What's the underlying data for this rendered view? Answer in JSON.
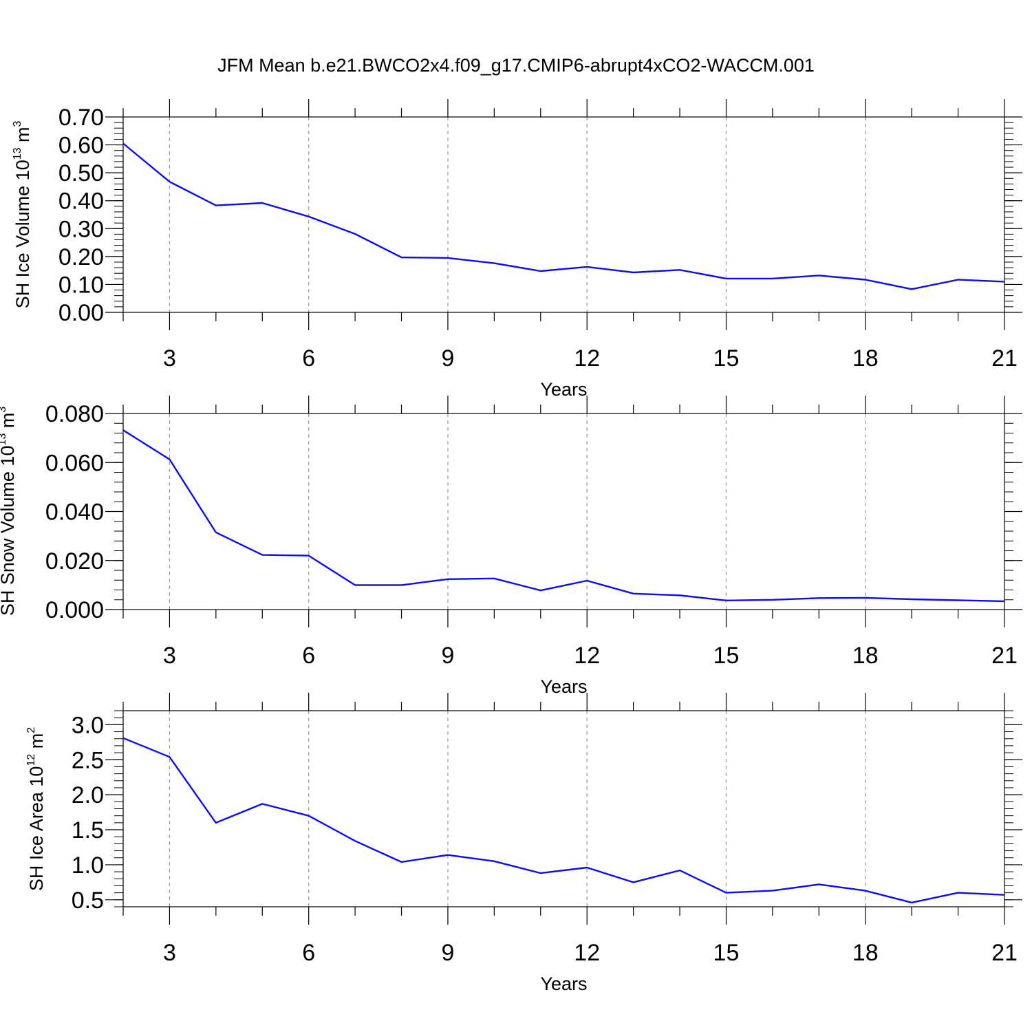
{
  "title": "JFM Mean b.e21.BWCO2x4.f09_g17.CMIP6-abrupt4xCO2-WACCM.001",
  "colors": {
    "line": "#0a0aff",
    "axis": "#000000",
    "grid": "#999999"
  },
  "chart_data": [
    {
      "type": "line",
      "x": [
        2,
        3,
        4,
        5,
        6,
        7,
        8,
        9,
        10,
        11,
        12,
        13,
        14,
        15,
        16,
        17,
        18,
        19,
        20,
        21
      ],
      "series": [
        {
          "values": [
            0.605,
            0.468,
            0.383,
            0.392,
            0.343,
            0.281,
            0.197,
            0.195,
            0.176,
            0.148,
            0.163,
            0.143,
            0.152,
            0.121,
            0.121,
            0.132,
            0.117,
            0.083,
            0.117,
            0.11
          ]
        }
      ],
      "xlim": [
        2,
        21
      ],
      "ylim": [
        0.0,
        0.7
      ],
      "xticks": [
        "3",
        "6",
        "9",
        "12",
        "15",
        "18",
        "21"
      ],
      "yticks": [
        "0.00",
        "0.10",
        "0.20",
        "0.30",
        "0.40",
        "0.50",
        "0.60",
        "0.70"
      ],
      "xlabel": "Years",
      "ylabel": {
        "text": "SH Ice Volume 10",
        "exponent": "13",
        "unit": " m",
        "unit_exponent": "3"
      },
      "grid": "vertical dashed at labeled years"
    },
    {
      "type": "line",
      "x": [
        2,
        3,
        4,
        5,
        6,
        7,
        8,
        9,
        10,
        11,
        12,
        13,
        14,
        15,
        16,
        17,
        18,
        19,
        20,
        21
      ],
      "series": [
        {
          "values": [
            0.0732,
            0.0613,
            0.0315,
            0.0223,
            0.022,
            0.01,
            0.01,
            0.0124,
            0.0127,
            0.0078,
            0.0118,
            0.0065,
            0.0058,
            0.0037,
            0.004,
            0.0047,
            0.0048,
            0.0042,
            0.0038,
            0.0034
          ]
        }
      ],
      "xlim": [
        2,
        21
      ],
      "ylim": [
        0.0,
        0.08
      ],
      "xticks": [
        "3",
        "6",
        "9",
        "12",
        "15",
        "18",
        "21"
      ],
      "yticks": [
        "0.000",
        "0.020",
        "0.040",
        "0.060",
        "0.080"
      ],
      "xlabel": "Years",
      "ylabel": {
        "text": "SH Snow Volume 10",
        "exponent": "13",
        "unit": " m",
        "unit_exponent": "3"
      },
      "grid": "vertical dashed at labeled years"
    },
    {
      "type": "line",
      "x": [
        2,
        3,
        4,
        5,
        6,
        7,
        8,
        9,
        10,
        11,
        12,
        13,
        14,
        15,
        16,
        17,
        18,
        19,
        20,
        21
      ],
      "series": [
        {
          "values": [
            2.81,
            2.54,
            1.6,
            1.87,
            1.7,
            1.34,
            1.04,
            1.14,
            1.05,
            0.88,
            0.96,
            0.75,
            0.92,
            0.6,
            0.63,
            0.72,
            0.63,
            0.46,
            0.6,
            0.57
          ]
        }
      ],
      "xlim": [
        2,
        21
      ],
      "ylim": [
        0.4,
        3.2
      ],
      "xticks": [
        "3",
        "6",
        "9",
        "12",
        "15",
        "18",
        "21"
      ],
      "yticks": [
        "0.5",
        "1.0",
        "1.5",
        "2.0",
        "2.5",
        "3.0"
      ],
      "xlabel": "Years",
      "ylabel": {
        "text": "SH Ice Area 10",
        "exponent": "12",
        "unit": " m",
        "unit_exponent": "2"
      },
      "grid": "vertical dashed at labeled years"
    }
  ]
}
